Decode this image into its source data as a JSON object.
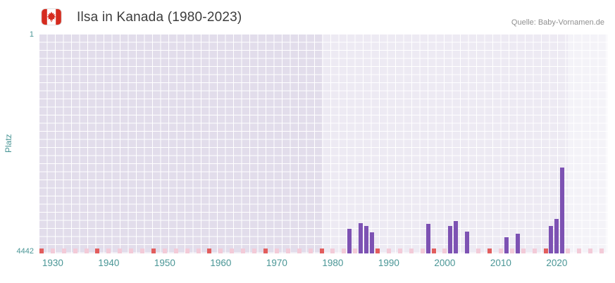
{
  "header": {
    "title": "Ilsa in Kanada (1980-2023)",
    "source": "Quelle: Baby-Vornamen.de"
  },
  "axes": {
    "y_label": "Platz",
    "y_tick_top": "1",
    "y_tick_bottom": "4442",
    "x_tick_labels": [
      "1930",
      "1940",
      "1950",
      "1960",
      "1970",
      "1980",
      "1990",
      "2000",
      "2010",
      "2020"
    ]
  },
  "chart_data": {
    "type": "bar",
    "title": "Ilsa in Kanada (1980-2023)",
    "ylabel": "Platz",
    "y_axis": {
      "best": 1,
      "worst": 4442,
      "inverted": true
    },
    "x_domain": [
      1927.5,
      2029
    ],
    "x_ticks": [
      1930,
      1940,
      1950,
      1960,
      1970,
      1980,
      1990,
      2000,
      2010,
      2020
    ],
    "data_window": [
      1980,
      2023
    ],
    "bars": [
      {
        "year": 1983,
        "rank": 3940
      },
      {
        "year": 1985,
        "rank": 3830
      },
      {
        "year": 1986,
        "rank": 3890
      },
      {
        "year": 1987,
        "rank": 4010
      },
      {
        "year": 1997,
        "rank": 3850
      },
      {
        "year": 2001,
        "rank": 3890
      },
      {
        "year": 2002,
        "rank": 3790
      },
      {
        "year": 2004,
        "rank": 4000
      },
      {
        "year": 2011,
        "rank": 4120
      },
      {
        "year": 2013,
        "rank": 4040
      },
      {
        "year": 2019,
        "rank": 3880
      },
      {
        "year": 2020,
        "rank": 3740
      },
      {
        "year": 2021,
        "rank": 2710
      }
    ],
    "red_marker_years": [
      1928,
      1938,
      1948,
      1958,
      1968,
      1978,
      1988,
      1998,
      2008,
      2018
    ],
    "pink_marker_years": [
      1930,
      1932,
      1934,
      1936,
      1940,
      1942,
      1944,
      1946,
      1950,
      1952,
      1954,
      1956,
      1960,
      1962,
      1964,
      1966,
      1970,
      1972,
      1974,
      1976,
      1980,
      1982,
      1984,
      1990,
      1992,
      1994,
      1996,
      2000,
      2006,
      2010,
      2012,
      2014,
      2016,
      2022,
      2024,
      2026,
      2028
    ],
    "shaded_region_end": 1978,
    "light_band_start": 2022,
    "legend": "none",
    "grid": "on"
  },
  "colors": {
    "bar": "#7d52b3",
    "red_marker": "#e25d5d",
    "pink_marker": "#f3cbd8",
    "plot_background": "#e2ddeb",
    "grid_line": "#ffffff",
    "axis_text": "#4a9696",
    "title_text": "#3d3d3d",
    "source_text": "#909090",
    "flag_red": "#d52b1e"
  }
}
